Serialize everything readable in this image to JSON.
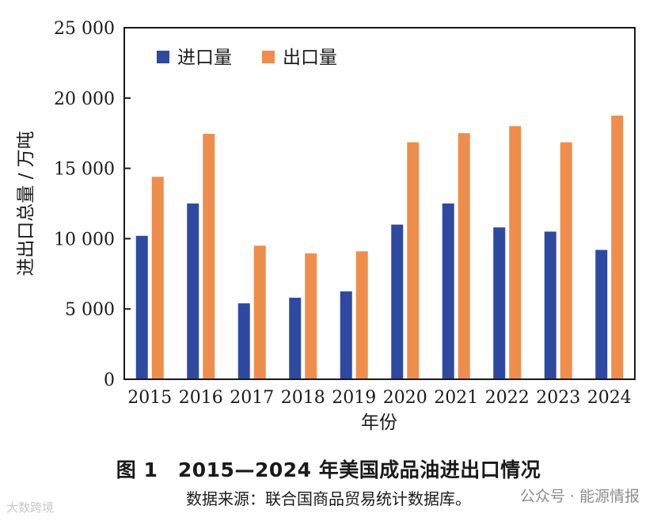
{
  "chart_data": {
    "type": "bar",
    "categories": [
      "2015",
      "2016",
      "2017",
      "2018",
      "2019",
      "2020",
      "2021",
      "2022",
      "2023",
      "2024"
    ],
    "series": [
      {
        "name": "进口量",
        "color": "#2e4aa0",
        "values": [
          10200,
          12500,
          5400,
          5800,
          6250,
          11000,
          12500,
          10800,
          10500,
          9200
        ]
      },
      {
        "name": "出口量",
        "color": "#ef8d4a",
        "values": [
          14400,
          17450,
          9500,
          8950,
          9100,
          16850,
          17500,
          18000,
          16850,
          18750
        ]
      }
    ],
    "xlabel": "年份",
    "ylabel": "进出口总量 / 万吨",
    "ylim": [
      0,
      25000
    ],
    "yticks": [
      0,
      5000,
      10000,
      15000,
      20000,
      25000
    ],
    "ytick_labels": [
      "0",
      "5 000",
      "10 000",
      "15 000",
      "20 000",
      "25 000"
    ],
    "legend_position": "top-left",
    "grid": false
  },
  "figure": {
    "title": "图 1　2015—2024 年美国成品油进出口情况",
    "source": "数据来源：联合国商品贸易统计数据库。"
  },
  "watermarks": {
    "left": "大数跨境",
    "right": "公众号 · 能源情报"
  }
}
